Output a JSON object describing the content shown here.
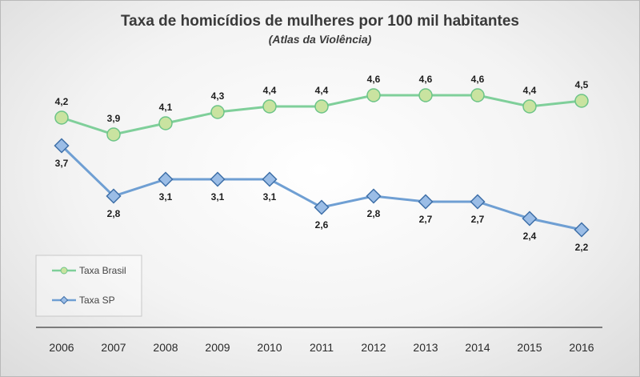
{
  "chart_data": {
    "type": "line",
    "title": "Taxa de homicídios de mulheres por 100 mil habitantes",
    "subtitle": "(Atlas da Violência)",
    "categories": [
      "2006",
      "2007",
      "2008",
      "2009",
      "2010",
      "2011",
      "2012",
      "2013",
      "2014",
      "2015",
      "2016"
    ],
    "series": [
      {
        "name": "Taxa Brasil",
        "values": [
          4.2,
          3.9,
          4.1,
          4.3,
          4.4,
          4.4,
          4.6,
          4.6,
          4.6,
          4.4,
          4.5
        ],
        "labels": [
          "4,2",
          "3,9",
          "4,1",
          "4,3",
          "4,4",
          "4,4",
          "4,6",
          "4,6",
          "4,6",
          "4,4",
          "4,5"
        ],
        "marker": "circle",
        "line_color": "#7fcf9a",
        "marker_fill": "#c9e3a0",
        "marker_stroke": "#6cc487"
      },
      {
        "name": "Taxa SP",
        "values": [
          3.7,
          2.8,
          3.1,
          3.1,
          3.1,
          2.6,
          2.8,
          2.7,
          2.7,
          2.4,
          2.2
        ],
        "labels": [
          "3,7",
          "2,8",
          "3,1",
          "3,1",
          "3,1",
          "2,6",
          "2,8",
          "2,7",
          "2,7",
          "2,4",
          "2,2"
        ],
        "marker": "diamond",
        "line_color": "#6f9fd3",
        "marker_fill": "#9bbde6",
        "marker_stroke": "#3e6fa8"
      }
    ],
    "ylim": [
      0,
      5
    ],
    "grid": false,
    "legend_position": "bottom-left",
    "xlabel": "",
    "ylabel": ""
  }
}
